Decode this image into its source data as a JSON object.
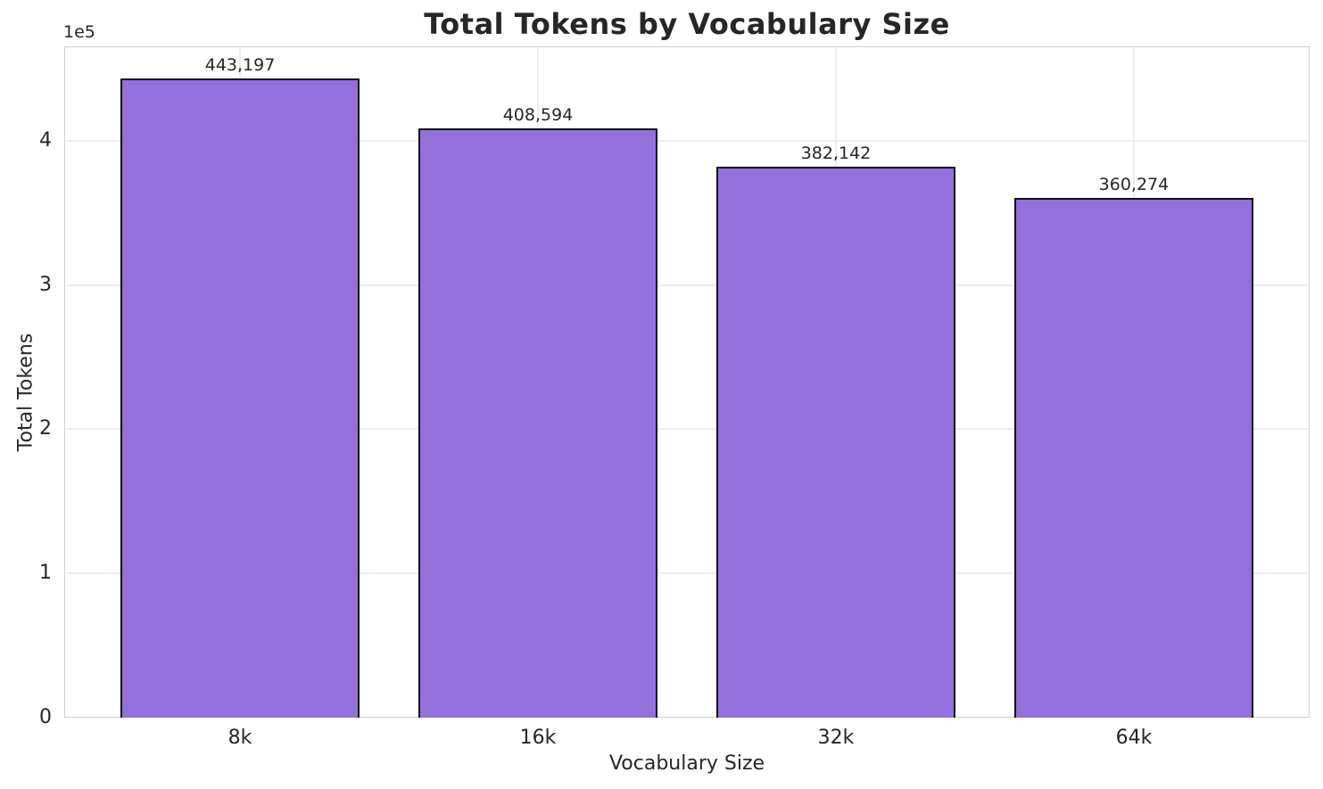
{
  "chart_data": {
    "type": "bar",
    "title": "Total Tokens by Vocabulary Size",
    "xlabel": "Vocabulary Size",
    "ylabel": "Total Tokens",
    "categories": [
      "8k",
      "16k",
      "32k",
      "64k"
    ],
    "values": [
      443197,
      408594,
      382142,
      360274
    ],
    "value_labels": [
      "443,197",
      "408,594",
      "382,142",
      "360,274"
    ],
    "ylim": [
      0,
      465357
    ],
    "yticks": {
      "values": [
        0,
        100000,
        200000,
        300000,
        400000
      ],
      "labels": [
        "0",
        "1",
        "2",
        "3",
        "4"
      ],
      "offset_label": "1e5"
    },
    "grid": true,
    "legend_position": "none",
    "colors": {
      "bar_fill": "#9370DB",
      "bar_edge": "#0d0d0d",
      "grid": "#ededed",
      "spine": "#d0d0d0",
      "text": "#262626"
    }
  }
}
